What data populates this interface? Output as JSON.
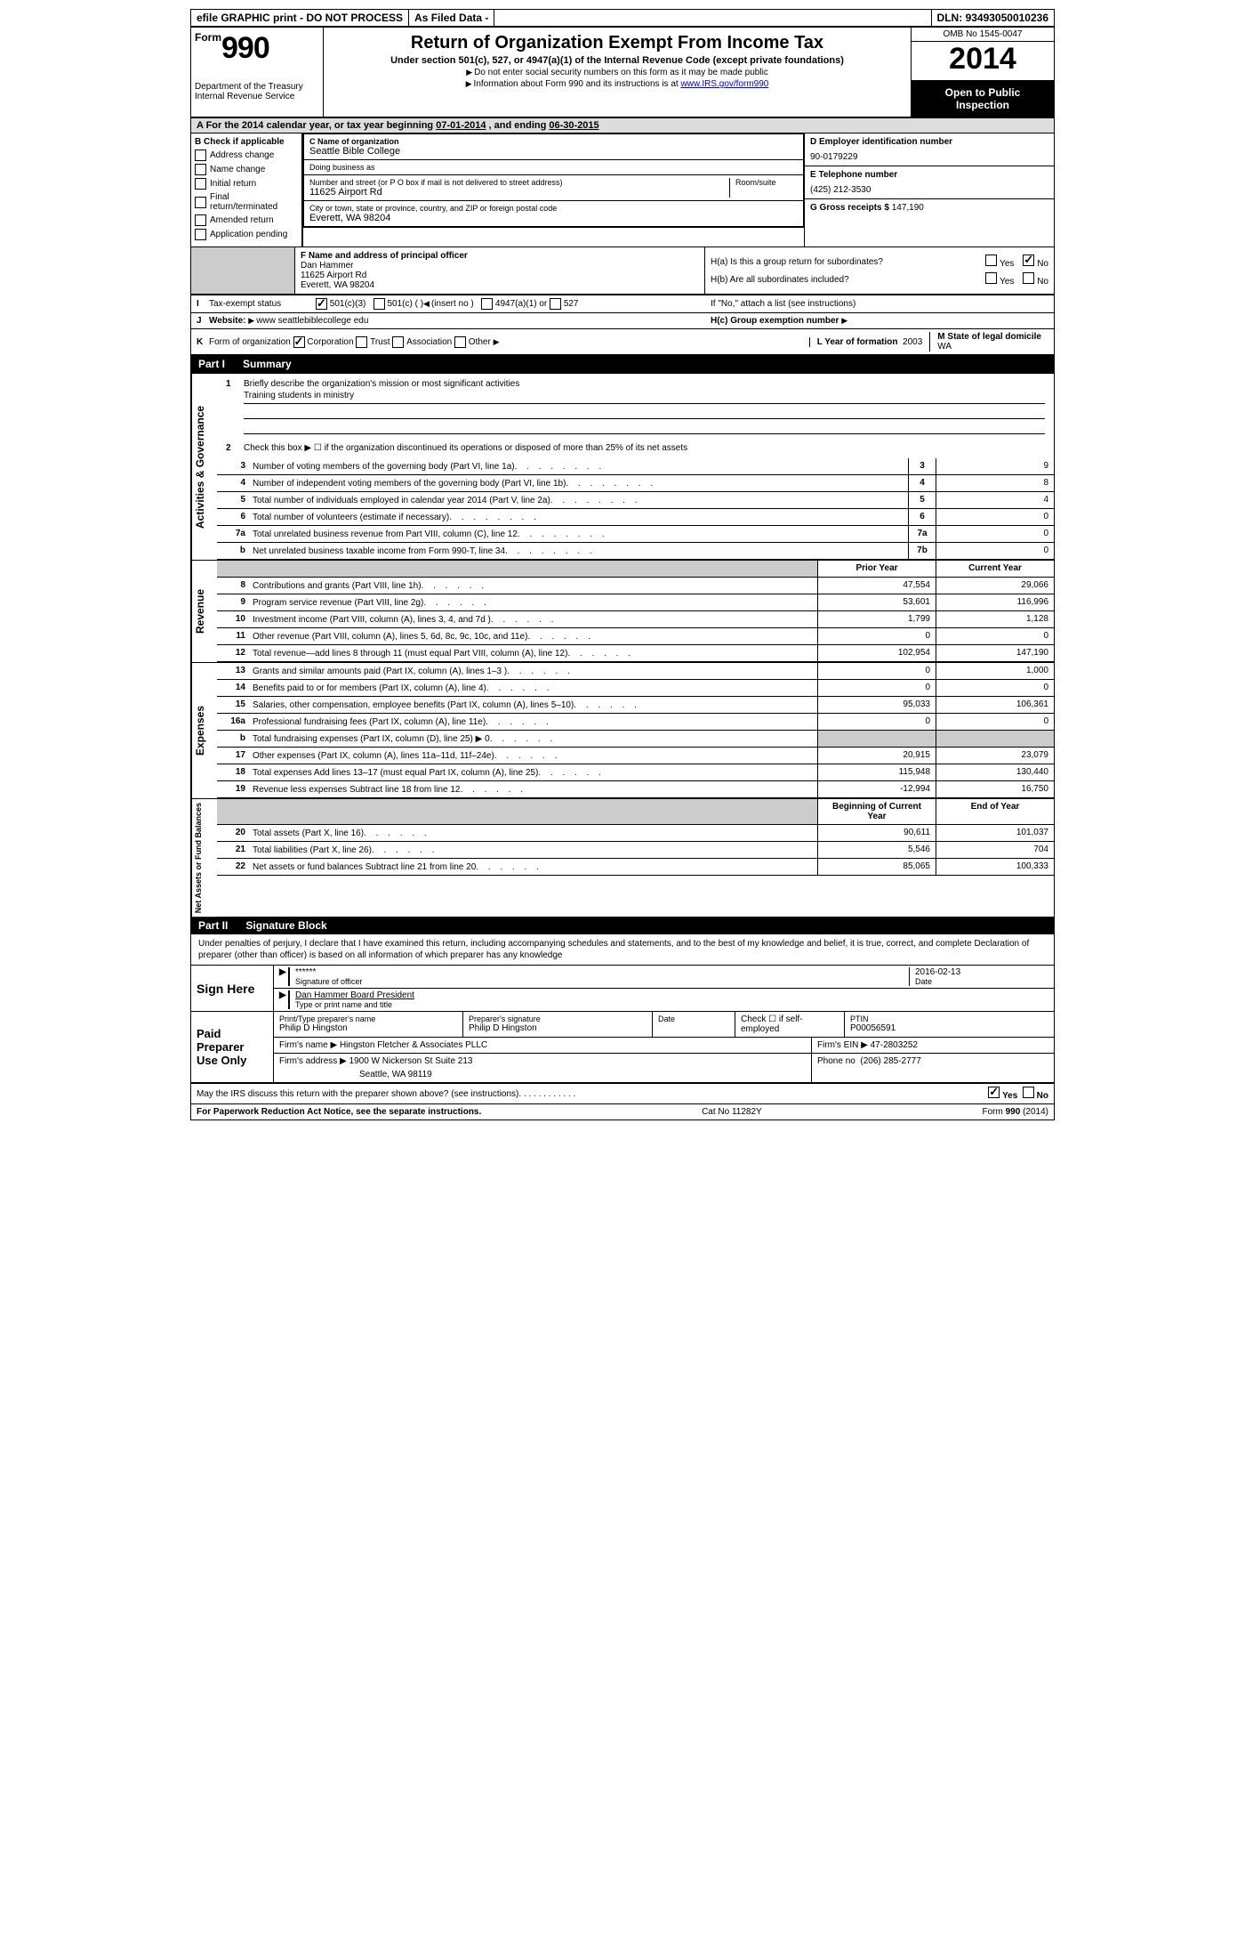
{
  "topbar": {
    "efile": "efile GRAPHIC print - DO NOT PROCESS",
    "asfiled": "As Filed Data -",
    "dln_label": "DLN:",
    "dln": "93493050010236"
  },
  "header": {
    "form_word": "Form",
    "form_num": "990",
    "dept1": "Department of the Treasury",
    "dept2": "Internal Revenue Service",
    "title": "Return of Organization Exempt From Income Tax",
    "subtitle": "Under section 501(c), 527, or 4947(a)(1) of the Internal Revenue Code (except private foundations)",
    "instr1": "Do not enter social security numbers on this form as it may be made public",
    "instr2_pre": "Information about Form 990 and its instructions is at ",
    "instr2_link": "www.IRS.gov/form990",
    "omb": "OMB No 1545-0047",
    "year": "2014",
    "open1": "Open to Public",
    "open2": "Inspection"
  },
  "row_a": {
    "label": "A For the 2014 calendar year, or tax year beginning ",
    "begin": "07-01-2014",
    "mid": ", and ending ",
    "end": "06-30-2015"
  },
  "col_b": {
    "hdr": "B Check if applicable",
    "items": [
      "Address change",
      "Name change",
      "Initial return",
      "Final return/terminated",
      "Amended return",
      "Application pending"
    ]
  },
  "col_c": {
    "name_label": "C Name of organization",
    "name": "Seattle Bible College",
    "dba_label": "Doing business as",
    "dba": "",
    "addr_label": "Number and street (or P O box if mail is not delivered to street address)",
    "room_label": "Room/suite",
    "addr": "11625 Airport Rd",
    "city_label": "City or town, state or province, country, and ZIP or foreign postal code",
    "city": "Everett, WA  98204"
  },
  "col_d": {
    "ein_label": "D Employer identification number",
    "ein": "90-0179229",
    "tel_label": "E Telephone number",
    "tel": "(425) 212-3530",
    "gross_label": "G Gross receipts $",
    "gross": "147,190"
  },
  "section_f": {
    "label": "F  Name and address of principal officer",
    "name": "Dan Hammer",
    "addr1": "11625 Airport Rd",
    "addr2": "Everett, WA  98204"
  },
  "section_h": {
    "ha_label": "H(a)  Is this a group return for subordinates?",
    "hb_label": "H(b)  Are all subordinates included?",
    "hb_note": "If \"No,\" attach a list  (see instructions)",
    "hc_label": "H(c)  Group exemption number",
    "yes": "Yes",
    "no": "No"
  },
  "line_i": {
    "label": "Tax-exempt status",
    "opt1": "501(c)(3)",
    "opt2": "501(c) (  )",
    "opt2_insert": "(insert no )",
    "opt3": "4947(a)(1) or",
    "opt4": "527"
  },
  "line_j": {
    "label": "Website:",
    "url": "www seattlebiblecollege edu"
  },
  "line_k": {
    "label": "Form of organization",
    "opts": [
      "Corporation",
      "Trust",
      "Association",
      "Other"
    ]
  },
  "line_l": {
    "label": "L Year of formation",
    "val": "2003"
  },
  "line_m": {
    "label": "M State of legal domicile",
    "val": "WA"
  },
  "parts": {
    "p1_num": "Part I",
    "p1_title": "Summary",
    "p2_num": "Part II",
    "p2_title": "Signature Block"
  },
  "mission": {
    "line1_label": "Briefly describe the organization's mission or most significant activities",
    "line1_val": "Training students in ministry",
    "line2": "Check this box ▶ ☐ if the organization discontinued its operations or disposed of more than 25% of its net assets"
  },
  "governance_rows": [
    {
      "n": "3",
      "desc": "Number of voting members of the governing body (Part VI, line 1a)",
      "box": "3",
      "val": "9"
    },
    {
      "n": "4",
      "desc": "Number of independent voting members of the governing body (Part VI, line 1b)",
      "box": "4",
      "val": "8"
    },
    {
      "n": "5",
      "desc": "Total number of individuals employed in calendar year 2014 (Part V, line 2a)",
      "box": "5",
      "val": "4"
    },
    {
      "n": "6",
      "desc": "Total number of volunteers (estimate if necessary)",
      "box": "6",
      "val": "0"
    },
    {
      "n": "7a",
      "desc": "Total unrelated business revenue from Part VIII, column (C), line 12",
      "box": "7a",
      "val": "0"
    },
    {
      "n": "b",
      "desc": "Net unrelated business taxable income from Form 990-T, line 34",
      "box": "7b",
      "val": "0"
    }
  ],
  "col_headers": {
    "prior": "Prior Year",
    "current": "Current Year",
    "begin": "Beginning of Current Year",
    "end": "End of Year"
  },
  "revenue_rows": [
    {
      "n": "8",
      "desc": "Contributions and grants (Part VIII, line 1h)",
      "p": "47,554",
      "c": "29,066"
    },
    {
      "n": "9",
      "desc": "Program service revenue (Part VIII, line 2g)",
      "p": "53,601",
      "c": "116,996"
    },
    {
      "n": "10",
      "desc": "Investment income (Part VIII, column (A), lines 3, 4, and 7d )",
      "p": "1,799",
      "c": "1,128"
    },
    {
      "n": "11",
      "desc": "Other revenue (Part VIII, column (A), lines 5, 6d, 8c, 9c, 10c, and 11e)",
      "p": "0",
      "c": "0"
    },
    {
      "n": "12",
      "desc": "Total revenue—add lines 8 through 11 (must equal Part VIII, column (A), line 12)",
      "p": "102,954",
      "c": "147,190"
    }
  ],
  "expense_rows": [
    {
      "n": "13",
      "desc": "Grants and similar amounts paid (Part IX, column (A), lines 1–3 )",
      "p": "0",
      "c": "1,000"
    },
    {
      "n": "14",
      "desc": "Benefits paid to or for members (Part IX, column (A), line 4)",
      "p": "0",
      "c": "0"
    },
    {
      "n": "15",
      "desc": "Salaries, other compensation, employee benefits (Part IX, column (A), lines 5–10)",
      "p": "95,033",
      "c": "106,361"
    },
    {
      "n": "16a",
      "desc": "Professional fundraising fees (Part IX, column (A), line 11e)",
      "p": "0",
      "c": "0"
    },
    {
      "n": "b",
      "desc": "Total fundraising expenses (Part IX, column (D), line 25) ▶ 0",
      "p": "",
      "c": "",
      "gray": true
    },
    {
      "n": "17",
      "desc": "Other expenses (Part IX, column (A), lines 11a–11d, 11f–24e)",
      "p": "20,915",
      "c": "23,079"
    },
    {
      "n": "18",
      "desc": "Total expenses  Add lines 13–17 (must equal Part IX, column (A), line 25)",
      "p": "115,948",
      "c": "130,440"
    },
    {
      "n": "19",
      "desc": "Revenue less expenses  Subtract line 18 from line 12",
      "p": "-12,994",
      "c": "16,750"
    }
  ],
  "balance_rows": [
    {
      "n": "20",
      "desc": "Total assets (Part X, line 16)",
      "p": "90,611",
      "c": "101,037"
    },
    {
      "n": "21",
      "desc": "Total liabilities (Part X, line 26)",
      "p": "5,546",
      "c": "704"
    },
    {
      "n": "22",
      "desc": "Net assets or fund balances  Subtract line 21 from line 20",
      "p": "85,065",
      "c": "100,333"
    }
  ],
  "vtabs": {
    "gov": "Activities & Governance",
    "rev": "Revenue",
    "exp": "Expenses",
    "bal": "Net Assets or Fund Balances"
  },
  "sig": {
    "intro": "Under penalties of perjury, I declare that I have examined this return, including accompanying schedules and statements, and to the best of my knowledge and belief, it is true, correct, and complete  Declaration of preparer (other than officer) is based on all information of which preparer has any knowledge",
    "sign_here": "Sign Here",
    "sig_label": "Signature of officer",
    "sig_val": "******",
    "date_label": "Date",
    "date_val": "2016-02-13",
    "name_label": "Type or print name and title",
    "name_val": "Dan Hammer Board President"
  },
  "prep": {
    "title": "Paid Preparer Use Only",
    "name_label": "Print/Type preparer's name",
    "name": "Philip D Hingston",
    "sig_label": "Preparer's signature",
    "sig": "Philip D Hingston",
    "date_label": "Date",
    "check_label": "Check ☐ if self-employed",
    "ptin_label": "PTIN",
    "ptin": "P00056591",
    "firm_label": "Firm's name  ▶",
    "firm": "Hingston Fletcher & Associates PLLC",
    "ein_label": "Firm's EIN ▶",
    "ein": "47-2803252",
    "addr_label": "Firm's address ▶",
    "addr1": "1900 W Nickerson St Suite 213",
    "addr2": "Seattle, WA  98119",
    "phone_label": "Phone no",
    "phone": "(206) 285-2777"
  },
  "discuss": {
    "q": "May the IRS discuss this return with the preparer shown above? (see instructions)",
    "yes": "Yes",
    "no": "No"
  },
  "footer": {
    "left": "For Paperwork Reduction Act Notice, see the separate instructions.",
    "mid": "Cat No 11282Y",
    "right": "Form 990 (2014)"
  }
}
